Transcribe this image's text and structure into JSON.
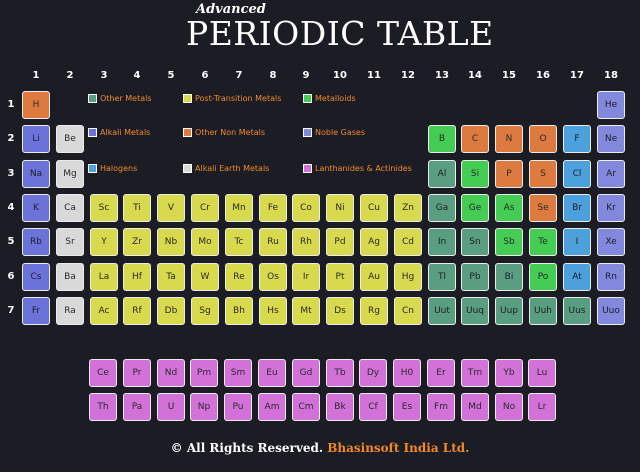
{
  "title": {
    "small": "Advanced",
    "main": "PERIODIC TABLE"
  },
  "groups": [
    "1",
    "2",
    "3",
    "4",
    "5",
    "6",
    "7",
    "8",
    "9",
    "10",
    "11",
    "12",
    "13",
    "14",
    "15",
    "16",
    "17",
    "18"
  ],
  "periods": [
    "1",
    "2",
    "3",
    "4",
    "5",
    "6",
    "7"
  ],
  "legend": [
    {
      "key": "other-metals",
      "label": "Other Metals",
      "color": "#5a9e82"
    },
    {
      "key": "post-transition",
      "label": "Post-Transition Metals",
      "color": "#d9d94e"
    },
    {
      "key": "metalloids",
      "label": "Metalloids",
      "color": "#45cc55"
    },
    {
      "key": "alkali",
      "label": "Alkali Metals",
      "color": "#6b72d8"
    },
    {
      "key": "other-nonmetals",
      "label": "Other Non Metals",
      "color": "#dc7a40"
    },
    {
      "key": "noble-gases",
      "label": "Noble Gases",
      "color": "#8288dc"
    },
    {
      "key": "halogens",
      "label": "Halogens",
      "color": "#4ca0dc"
    },
    {
      "key": "alkaline-earth",
      "label": "Alkali Earth Metals",
      "color": "#d9d9d9"
    },
    {
      "key": "lanthanides",
      "label": "Lanthanides & Actinides",
      "color": "#d271d8"
    }
  ],
  "elements": [
    {
      "s": "H",
      "g": 1,
      "p": 1,
      "c": "nonmetal"
    },
    {
      "s": "He",
      "g": 18,
      "p": 1,
      "c": "noble"
    },
    {
      "s": "Li",
      "g": 1,
      "p": 2,
      "c": "alkali"
    },
    {
      "s": "Be",
      "g": 2,
      "p": 2,
      "c": "earth"
    },
    {
      "s": "B",
      "g": 13,
      "p": 2,
      "c": "metalloid"
    },
    {
      "s": "C",
      "g": 14,
      "p": 2,
      "c": "nonmetal"
    },
    {
      "s": "N",
      "g": 15,
      "p": 2,
      "c": "nonmetal"
    },
    {
      "s": "O",
      "g": 16,
      "p": 2,
      "c": "nonmetal"
    },
    {
      "s": "F",
      "g": 17,
      "p": 2,
      "c": "halogen"
    },
    {
      "s": "Ne",
      "g": 18,
      "p": 2,
      "c": "noble"
    },
    {
      "s": "Na",
      "g": 1,
      "p": 3,
      "c": "alkali"
    },
    {
      "s": "Mg",
      "g": 2,
      "p": 3,
      "c": "earth"
    },
    {
      "s": "Al",
      "g": 13,
      "p": 3,
      "c": "other"
    },
    {
      "s": "Si",
      "g": 14,
      "p": 3,
      "c": "metalloid"
    },
    {
      "s": "P",
      "g": 15,
      "p": 3,
      "c": "nonmetal"
    },
    {
      "s": "S",
      "g": 16,
      "p": 3,
      "c": "nonmetal"
    },
    {
      "s": "Cl",
      "g": 17,
      "p": 3,
      "c": "halogen"
    },
    {
      "s": "Ar",
      "g": 18,
      "p": 3,
      "c": "noble"
    },
    {
      "s": "K",
      "g": 1,
      "p": 4,
      "c": "alkali"
    },
    {
      "s": "Ca",
      "g": 2,
      "p": 4,
      "c": "earth"
    },
    {
      "s": "Sc",
      "g": 3,
      "p": 4,
      "c": "post"
    },
    {
      "s": "Ti",
      "g": 4,
      "p": 4,
      "c": "post"
    },
    {
      "s": "V",
      "g": 5,
      "p": 4,
      "c": "post"
    },
    {
      "s": "Cr",
      "g": 6,
      "p": 4,
      "c": "post"
    },
    {
      "s": "Mn",
      "g": 7,
      "p": 4,
      "c": "post"
    },
    {
      "s": "Fe",
      "g": 8,
      "p": 4,
      "c": "post"
    },
    {
      "s": "Co",
      "g": 9,
      "p": 4,
      "c": "post"
    },
    {
      "s": "Ni",
      "g": 10,
      "p": 4,
      "c": "post"
    },
    {
      "s": "Cu",
      "g": 11,
      "p": 4,
      "c": "post"
    },
    {
      "s": "Zn",
      "g": 12,
      "p": 4,
      "c": "post"
    },
    {
      "s": "Ga",
      "g": 13,
      "p": 4,
      "c": "other"
    },
    {
      "s": "Ge",
      "g": 14,
      "p": 4,
      "c": "metalloid"
    },
    {
      "s": "As",
      "g": 15,
      "p": 4,
      "c": "metalloid"
    },
    {
      "s": "Se",
      "g": 16,
      "p": 4,
      "c": "nonmetal"
    },
    {
      "s": "Br",
      "g": 17,
      "p": 4,
      "c": "halogen"
    },
    {
      "s": "Kr",
      "g": 18,
      "p": 4,
      "c": "noble"
    },
    {
      "s": "Rb",
      "g": 1,
      "p": 5,
      "c": "alkali"
    },
    {
      "s": "Sr",
      "g": 2,
      "p": 5,
      "c": "earth"
    },
    {
      "s": "Y",
      "g": 3,
      "p": 5,
      "c": "post"
    },
    {
      "s": "Zr",
      "g": 4,
      "p": 5,
      "c": "post"
    },
    {
      "s": "Nb",
      "g": 5,
      "p": 5,
      "c": "post"
    },
    {
      "s": "Mo",
      "g": 6,
      "p": 5,
      "c": "post"
    },
    {
      "s": "Tc",
      "g": 7,
      "p": 5,
      "c": "post"
    },
    {
      "s": "Ru",
      "g": 8,
      "p": 5,
      "c": "post"
    },
    {
      "s": "Rh",
      "g": 9,
      "p": 5,
      "c": "post"
    },
    {
      "s": "Pd",
      "g": 10,
      "p": 5,
      "c": "post"
    },
    {
      "s": "Ag",
      "g": 11,
      "p": 5,
      "c": "post"
    },
    {
      "s": "Cd",
      "g": 12,
      "p": 5,
      "c": "post"
    },
    {
      "s": "In",
      "g": 13,
      "p": 5,
      "c": "other"
    },
    {
      "s": "Sn",
      "g": 14,
      "p": 5,
      "c": "other"
    },
    {
      "s": "Sb",
      "g": 15,
      "p": 5,
      "c": "metalloid"
    },
    {
      "s": "Te",
      "g": 16,
      "p": 5,
      "c": "metalloid"
    },
    {
      "s": "I",
      "g": 17,
      "p": 5,
      "c": "halogen"
    },
    {
      "s": "Xe",
      "g": 18,
      "p": 5,
      "c": "noble"
    },
    {
      "s": "Cs",
      "g": 1,
      "p": 6,
      "c": "alkali"
    },
    {
      "s": "Ba",
      "g": 2,
      "p": 6,
      "c": "earth"
    },
    {
      "s": "La",
      "g": 3,
      "p": 6,
      "c": "post"
    },
    {
      "s": "Hf",
      "g": 4,
      "p": 6,
      "c": "post"
    },
    {
      "s": "Ta",
      "g": 5,
      "p": 6,
      "c": "post"
    },
    {
      "s": "W",
      "g": 6,
      "p": 6,
      "c": "post"
    },
    {
      "s": "Re",
      "g": 7,
      "p": 6,
      "c": "post"
    },
    {
      "s": "Os",
      "g": 8,
      "p": 6,
      "c": "post"
    },
    {
      "s": "Ir",
      "g": 9,
      "p": 6,
      "c": "post"
    },
    {
      "s": "Pt",
      "g": 10,
      "p": 6,
      "c": "post"
    },
    {
      "s": "Au",
      "g": 11,
      "p": 6,
      "c": "post"
    },
    {
      "s": "Hg",
      "g": 12,
      "p": 6,
      "c": "post"
    },
    {
      "s": "Tl",
      "g": 13,
      "p": 6,
      "c": "other"
    },
    {
      "s": "Pb",
      "g": 14,
      "p": 6,
      "c": "other"
    },
    {
      "s": "Bi",
      "g": 15,
      "p": 6,
      "c": "other"
    },
    {
      "s": "Po",
      "g": 16,
      "p": 6,
      "c": "metalloid"
    },
    {
      "s": "At",
      "g": 17,
      "p": 6,
      "c": "halogen"
    },
    {
      "s": "Rn",
      "g": 18,
      "p": 6,
      "c": "noble"
    },
    {
      "s": "Fr",
      "g": 1,
      "p": 7,
      "c": "alkali"
    },
    {
      "s": "Ra",
      "g": 2,
      "p": 7,
      "c": "earth"
    },
    {
      "s": "Ac",
      "g": 3,
      "p": 7,
      "c": "post"
    },
    {
      "s": "Rf",
      "g": 4,
      "p": 7,
      "c": "post"
    },
    {
      "s": "Db",
      "g": 5,
      "p": 7,
      "c": "post"
    },
    {
      "s": "Sg",
      "g": 6,
      "p": 7,
      "c": "post"
    },
    {
      "s": "Bh",
      "g": 7,
      "p": 7,
      "c": "post"
    },
    {
      "s": "Hs",
      "g": 8,
      "p": 7,
      "c": "post"
    },
    {
      "s": "Mt",
      "g": 9,
      "p": 7,
      "c": "post"
    },
    {
      "s": "Ds",
      "g": 10,
      "p": 7,
      "c": "post"
    },
    {
      "s": "Rg",
      "g": 11,
      "p": 7,
      "c": "post"
    },
    {
      "s": "Cn",
      "g": 12,
      "p": 7,
      "c": "post"
    },
    {
      "s": "Uut",
      "g": 13,
      "p": 7,
      "c": "other"
    },
    {
      "s": "Uuq",
      "g": 14,
      "p": 7,
      "c": "other"
    },
    {
      "s": "Uup",
      "g": 15,
      "p": 7,
      "c": "other"
    },
    {
      "s": "Uuh",
      "g": 16,
      "p": 7,
      "c": "other"
    },
    {
      "s": "Uus",
      "g": 17,
      "p": 7,
      "c": "other"
    },
    {
      "s": "Uuo",
      "g": 18,
      "p": 7,
      "c": "noble"
    }
  ],
  "lanthanides": [
    "Ce",
    "Pr",
    "Nd",
    "Pm",
    "Sm",
    "Eu",
    "Gd",
    "Tb",
    "Dy",
    "H0",
    "Er",
    "Tm",
    "Yb",
    "Lu"
  ],
  "actinides": [
    "Th",
    "Pa",
    "U",
    "Np",
    "Pu",
    "Am",
    "Cm",
    "Bk",
    "Cf",
    "Es",
    "Fm",
    "Md",
    "No",
    "Lr"
  ],
  "category_colors": {
    "alkali": "#6b72d8",
    "earth": "#d9d9d9",
    "post": "#d9d94e",
    "other": "#5a9e82",
    "metalloid": "#45cc55",
    "nonmetal": "#dc7a40",
    "halogen": "#4ca0dc",
    "noble": "#8288dc",
    "lanth": "#d271d8"
  },
  "footer": {
    "rights": "© All Rights Reserved.",
    "company": "Bhasinsoft India Ltd."
  }
}
